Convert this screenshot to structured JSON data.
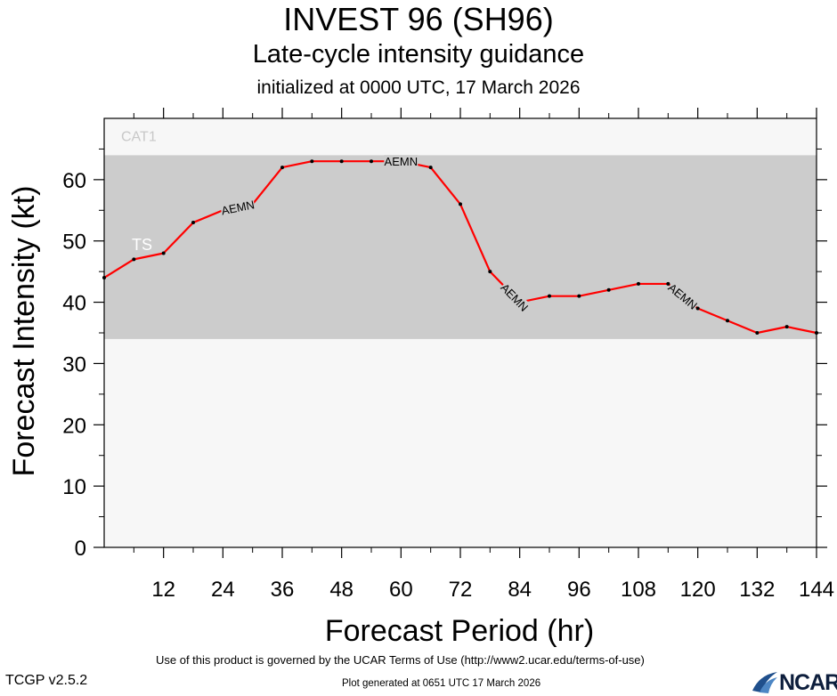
{
  "chart_data": {
    "type": "line",
    "title": "INVEST 96 (SH96)",
    "subtitle": "Late-cycle intensity guidance",
    "initialized": "initialized at 0000 UTC, 17 March 2026",
    "xlabel": "Forecast Period (hr)",
    "ylabel": "Forecast Intensity (kt)",
    "xlim": [
      0,
      144
    ],
    "ylim": [
      0,
      70
    ],
    "xticks": [
      12,
      24,
      36,
      48,
      60,
      72,
      84,
      96,
      108,
      120,
      132,
      144
    ],
    "yticks": [
      0,
      10,
      20,
      30,
      40,
      50,
      60
    ],
    "bands": [
      {
        "label": "TS",
        "from": 34,
        "to": 64,
        "color": "#cccccc"
      },
      {
        "label": "CAT1",
        "from": 64,
        "to": 70,
        "color": "#f7f7f7"
      }
    ],
    "series": [
      {
        "name": "AEMN",
        "color": "#ff0000",
        "x": [
          0,
          6,
          12,
          18,
          24,
          30,
          36,
          42,
          48,
          54,
          60,
          66,
          72,
          78,
          84,
          90,
          96,
          102,
          108,
          114,
          120,
          126,
          132,
          138,
          144
        ],
        "values": [
          44,
          47,
          48,
          53,
          55,
          56,
          62,
          63,
          63,
          63,
          63,
          62,
          56,
          45,
          40,
          41,
          41,
          42,
          43,
          43,
          39,
          37,
          35,
          36,
          35
        ],
        "label_at_hours": [
          27,
          60,
          83,
          117
        ]
      }
    ]
  },
  "footer": {
    "terms": "Use of this product is governed by the UCAR Terms of Use (http://www2.ucar.edu/terms-of-use)",
    "generated": "Plot generated at 0651 UTC   17 March 2026",
    "version": "TCGP v2.5.2",
    "logo_text": "NCAR"
  },
  "colors": {
    "line": "#ff0000",
    "ts_band": "#cccccc",
    "background": "#f7f7f7"
  }
}
